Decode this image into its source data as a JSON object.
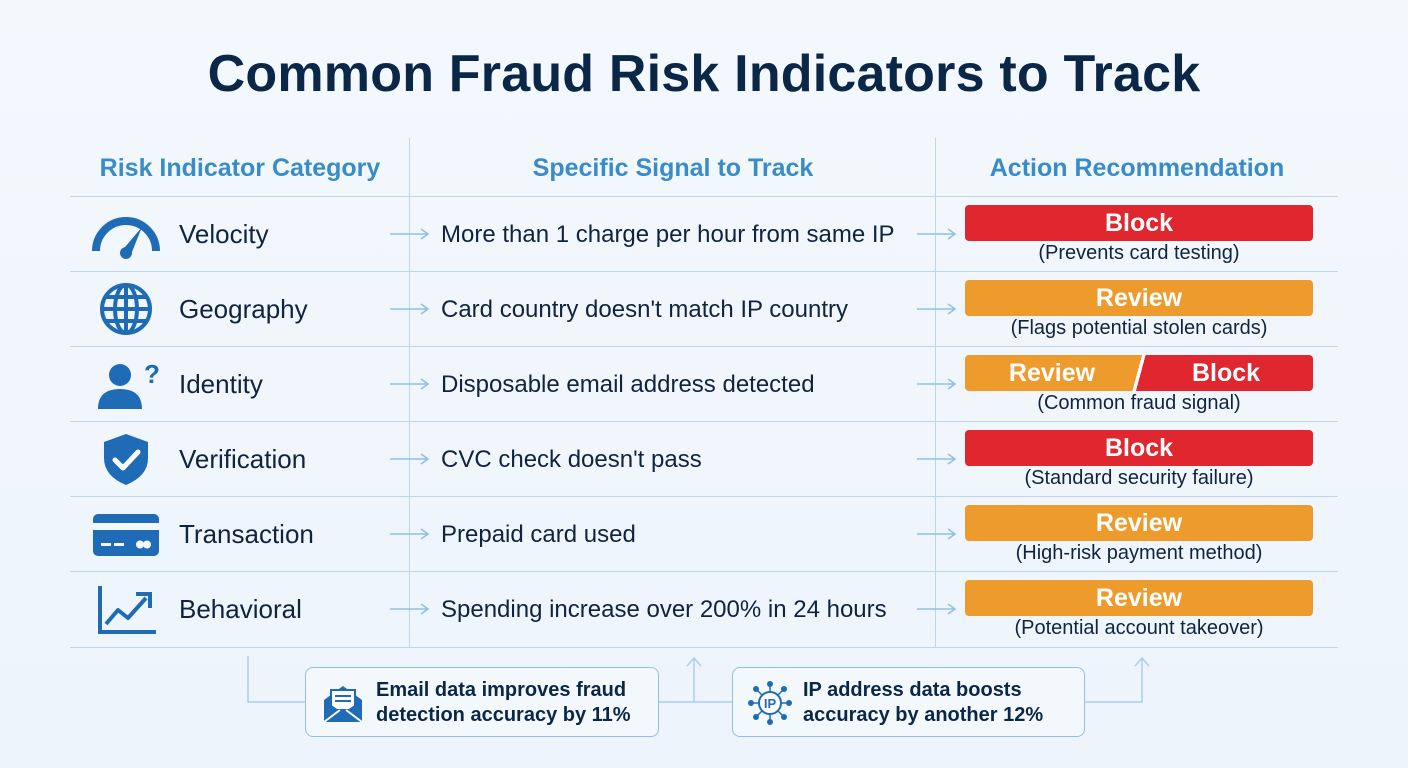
{
  "title": "Common Fraud Risk Indicators to Track",
  "headers": {
    "category": "Risk Indicator Category",
    "signal": "Specific Signal to Track",
    "action": "Action Recommendation"
  },
  "rows": [
    {
      "category": "Velocity",
      "icon": "speedometer-icon",
      "signal": "More than 1 charge per hour from same IP",
      "action": "Block",
      "note": "(Prevents card testing)"
    },
    {
      "category": "Geography",
      "icon": "globe-icon",
      "signal": "Card country doesn't match IP country",
      "action": "Review",
      "note": "(Flags potential stolen cards)"
    },
    {
      "category": "Identity",
      "icon": "user-question-icon",
      "signal": "Disposable email address detected",
      "action_left": "Review",
      "action_right": "Block",
      "note": "(Common fraud signal)"
    },
    {
      "category": "Verification",
      "icon": "shield-check-icon",
      "signal": "CVC check doesn't pass",
      "action": "Block",
      "note": "(Standard security failure)"
    },
    {
      "category": "Transaction",
      "icon": "credit-card-icon",
      "signal": "Prepaid card used",
      "action": "Review",
      "note": "(High-risk payment method)"
    },
    {
      "category": "Behavioral",
      "icon": "trend-up-chart-icon",
      "signal": "Spending increase over 200% in 24 hours",
      "action": "Review",
      "note": "(Potential account takeover)"
    }
  ],
  "callouts": {
    "email": {
      "line1": "Email data improves fraud",
      "line2": "detection accuracy by 11%",
      "icon": "envelope-icon"
    },
    "ip": {
      "line1": "IP address data boosts",
      "line2": "accuracy by another 12%",
      "icon": "ip-network-icon",
      "icon_text": "IP"
    }
  },
  "colors": {
    "title": "#0b2747",
    "header": "#3a8cc8",
    "icon": "#1f6bb5",
    "block": "#e0262e",
    "review": "#ee9b2e",
    "divider": "#bcd6ec"
  }
}
